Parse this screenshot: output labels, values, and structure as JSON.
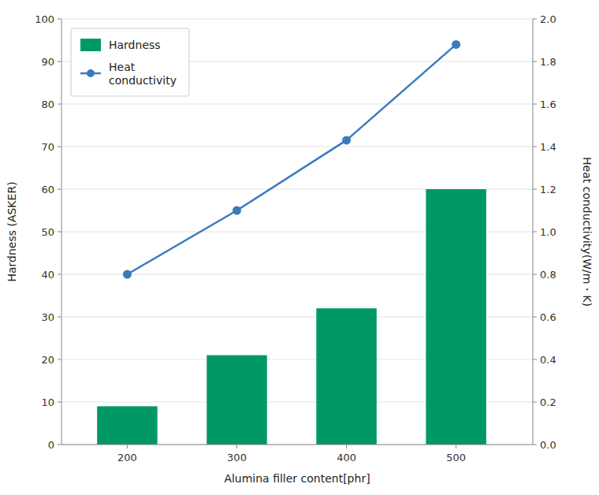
{
  "chart_data": {
    "type": "bar",
    "x": [
      200,
      300,
      400,
      500
    ],
    "xlabel": "Alumina filler content[phr]",
    "ylabel": "Hardness (ASKER)",
    "y2label": "Heat conductivity(W/m・K)",
    "xlim": [
      140,
      570
    ],
    "xticks": [
      200,
      300,
      400,
      500
    ],
    "ylim": [
      0,
      100
    ],
    "yticks": [
      0,
      10,
      20,
      30,
      40,
      50,
      60,
      70,
      80,
      90,
      100
    ],
    "y2lim": [
      0,
      2
    ],
    "y2ticks": [
      {
        "value": 0,
        "label": "0.0"
      },
      0.2,
      0.4,
      0.6,
      0.8,
      {
        "value": 1,
        "label": "1.0"
      },
      1.2,
      1.4,
      1.6,
      1.8,
      {
        "value": 2,
        "label": "2.0"
      }
    ],
    "grid": true,
    "legend": "upper left",
    "series": [
      {
        "name": "Hardness",
        "type": "bar",
        "color": "#009966",
        "values": [
          9,
          21,
          32,
          60
        ]
      },
      {
        "name": "Heat\nconductivity",
        "type": "line",
        "color": "#3a7abf",
        "marker": "circle",
        "axis": "y2",
        "values": [
          0.8,
          1.1,
          1.43,
          1.88
        ]
      }
    ]
  }
}
